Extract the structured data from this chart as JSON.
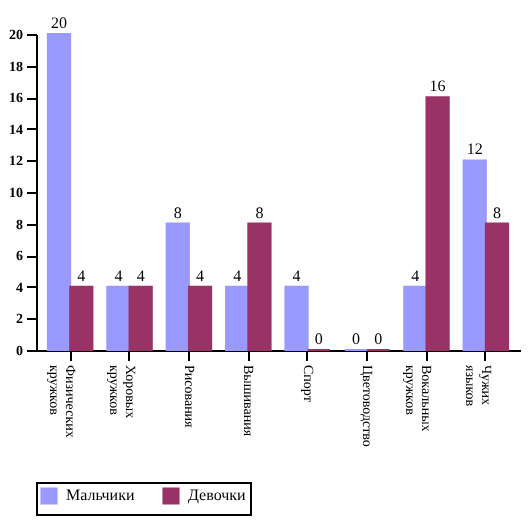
{
  "chart_data": {
    "type": "bar",
    "categories": [
      "Физических кружков",
      "Хоровых кружков",
      "Рисования",
      "Вышивания",
      "Спорт",
      "Цветоводство",
      "Вокальных кружков",
      "Чужих языков"
    ],
    "series": [
      {
        "name": "Мальчики",
        "color": "#9999ff",
        "values": [
          20,
          4,
          8,
          4,
          4,
          0,
          4,
          12
        ]
      },
      {
        "name": "Девочки",
        "color": "#993366",
        "values": [
          4,
          4,
          4,
          8,
          0,
          0,
          16,
          8
        ]
      }
    ],
    "ylim": [
      0,
      20
    ],
    "yticks": [
      0,
      2,
      4,
      6,
      8,
      10,
      12,
      14,
      16,
      18,
      20
    ],
    "grid": false,
    "legend": "bottom",
    "data_labels": true
  }
}
